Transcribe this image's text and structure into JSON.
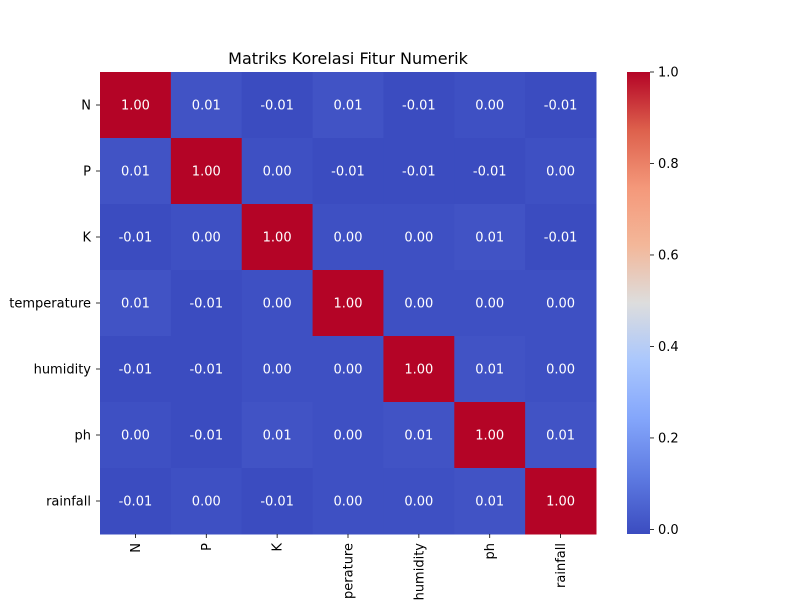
{
  "chart_data": {
    "type": "heatmap",
    "title": "Matriks Korelasi Fitur Numerik",
    "xlabel": "",
    "ylabel": "",
    "labels": [
      "N",
      "P",
      "K",
      "temperature",
      "humidity",
      "ph",
      "rainfall"
    ],
    "values": [
      [
        1.0,
        0.01,
        -0.01,
        0.01,
        -0.01,
        0.0,
        -0.01
      ],
      [
        0.01,
        1.0,
        0.0,
        -0.01,
        -0.01,
        -0.01,
        0.0
      ],
      [
        -0.01,
        0.0,
        1.0,
        0.0,
        0.0,
        0.01,
        -0.01
      ],
      [
        0.01,
        -0.01,
        0.0,
        1.0,
        0.0,
        -0.0,
        0.0
      ],
      [
        -0.01,
        -0.01,
        0.0,
        0.0,
        1.0,
        0.01,
        0.0
      ],
      [
        0.0,
        -0.01,
        0.01,
        -0.0,
        0.01,
        1.0,
        0.01
      ],
      [
        -0.01,
        0.0,
        -0.01,
        0.0,
        0.0,
        0.01,
        1.0
      ]
    ],
    "annotation_format": "2 decimals",
    "colormap": "coolwarm",
    "colorbar": {
      "range": [
        -0.01,
        1.0
      ],
      "ticks": [
        0.0,
        0.2,
        0.4,
        0.6,
        0.8,
        1.0
      ],
      "tick_labels": [
        "0.0",
        "0.2",
        "0.4",
        "0.6",
        "0.8",
        "1.0"
      ]
    },
    "grid": false,
    "x_tick_rotation": "vertical"
  }
}
